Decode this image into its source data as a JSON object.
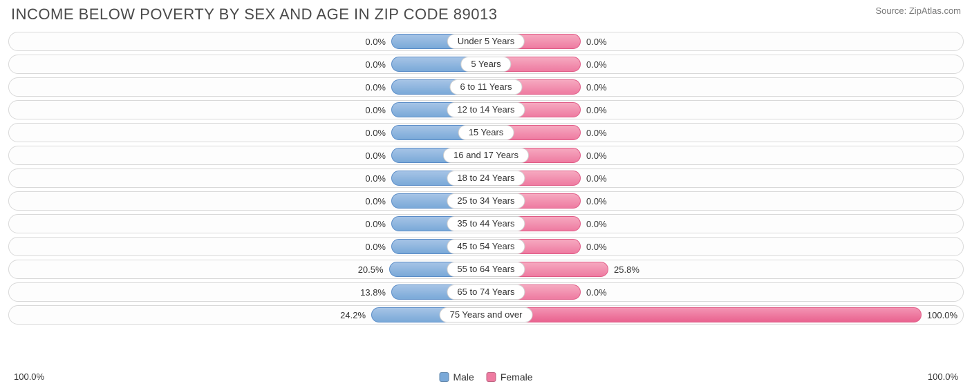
{
  "title": "INCOME BELOW POVERTY BY SEX AND AGE IN ZIP CODE 89013",
  "source": "Source: ZipAtlas.com",
  "axis": {
    "left": "100.0%",
    "right": "100.0%"
  },
  "legend": {
    "male": {
      "label": "Male",
      "swatch": "#7aa9d8"
    },
    "female": {
      "label": "Female",
      "swatch": "#ee7ba1"
    }
  },
  "colors": {
    "male_border": "#5a8cc7",
    "female_border": "#e05b86",
    "row_border": "#d9d9d9",
    "text": "#333333",
    "title": "#4a4a4a",
    "source": "#777777",
    "background": "#ffffff"
  },
  "chart": {
    "type": "diverging-bar",
    "x_max": 100.0,
    "min_bar_pct": 20.0,
    "big_threshold_pct": 30.0,
    "rows": [
      {
        "category": "Under 5 Years",
        "male": 0.0,
        "female": 0.0,
        "male_label": "0.0%",
        "female_label": "0.0%"
      },
      {
        "category": "5 Years",
        "male": 0.0,
        "female": 0.0,
        "male_label": "0.0%",
        "female_label": "0.0%"
      },
      {
        "category": "6 to 11 Years",
        "male": 0.0,
        "female": 0.0,
        "male_label": "0.0%",
        "female_label": "0.0%"
      },
      {
        "category": "12 to 14 Years",
        "male": 0.0,
        "female": 0.0,
        "male_label": "0.0%",
        "female_label": "0.0%"
      },
      {
        "category": "15 Years",
        "male": 0.0,
        "female": 0.0,
        "male_label": "0.0%",
        "female_label": "0.0%"
      },
      {
        "category": "16 and 17 Years",
        "male": 0.0,
        "female": 0.0,
        "male_label": "0.0%",
        "female_label": "0.0%"
      },
      {
        "category": "18 to 24 Years",
        "male": 0.0,
        "female": 0.0,
        "male_label": "0.0%",
        "female_label": "0.0%"
      },
      {
        "category": "25 to 34 Years",
        "male": 0.0,
        "female": 0.0,
        "male_label": "0.0%",
        "female_label": "0.0%"
      },
      {
        "category": "35 to 44 Years",
        "male": 0.0,
        "female": 0.0,
        "male_label": "0.0%",
        "female_label": "0.0%"
      },
      {
        "category": "45 to 54 Years",
        "male": 0.0,
        "female": 0.0,
        "male_label": "0.0%",
        "female_label": "0.0%"
      },
      {
        "category": "55 to 64 Years",
        "male": 20.5,
        "female": 25.8,
        "male_label": "20.5%",
        "female_label": "25.8%"
      },
      {
        "category": "65 to 74 Years",
        "male": 13.8,
        "female": 0.0,
        "male_label": "13.8%",
        "female_label": "0.0%"
      },
      {
        "category": "75 Years and over",
        "male": 24.2,
        "female": 100.0,
        "male_label": "24.2%",
        "female_label": "100.0%"
      }
    ]
  }
}
